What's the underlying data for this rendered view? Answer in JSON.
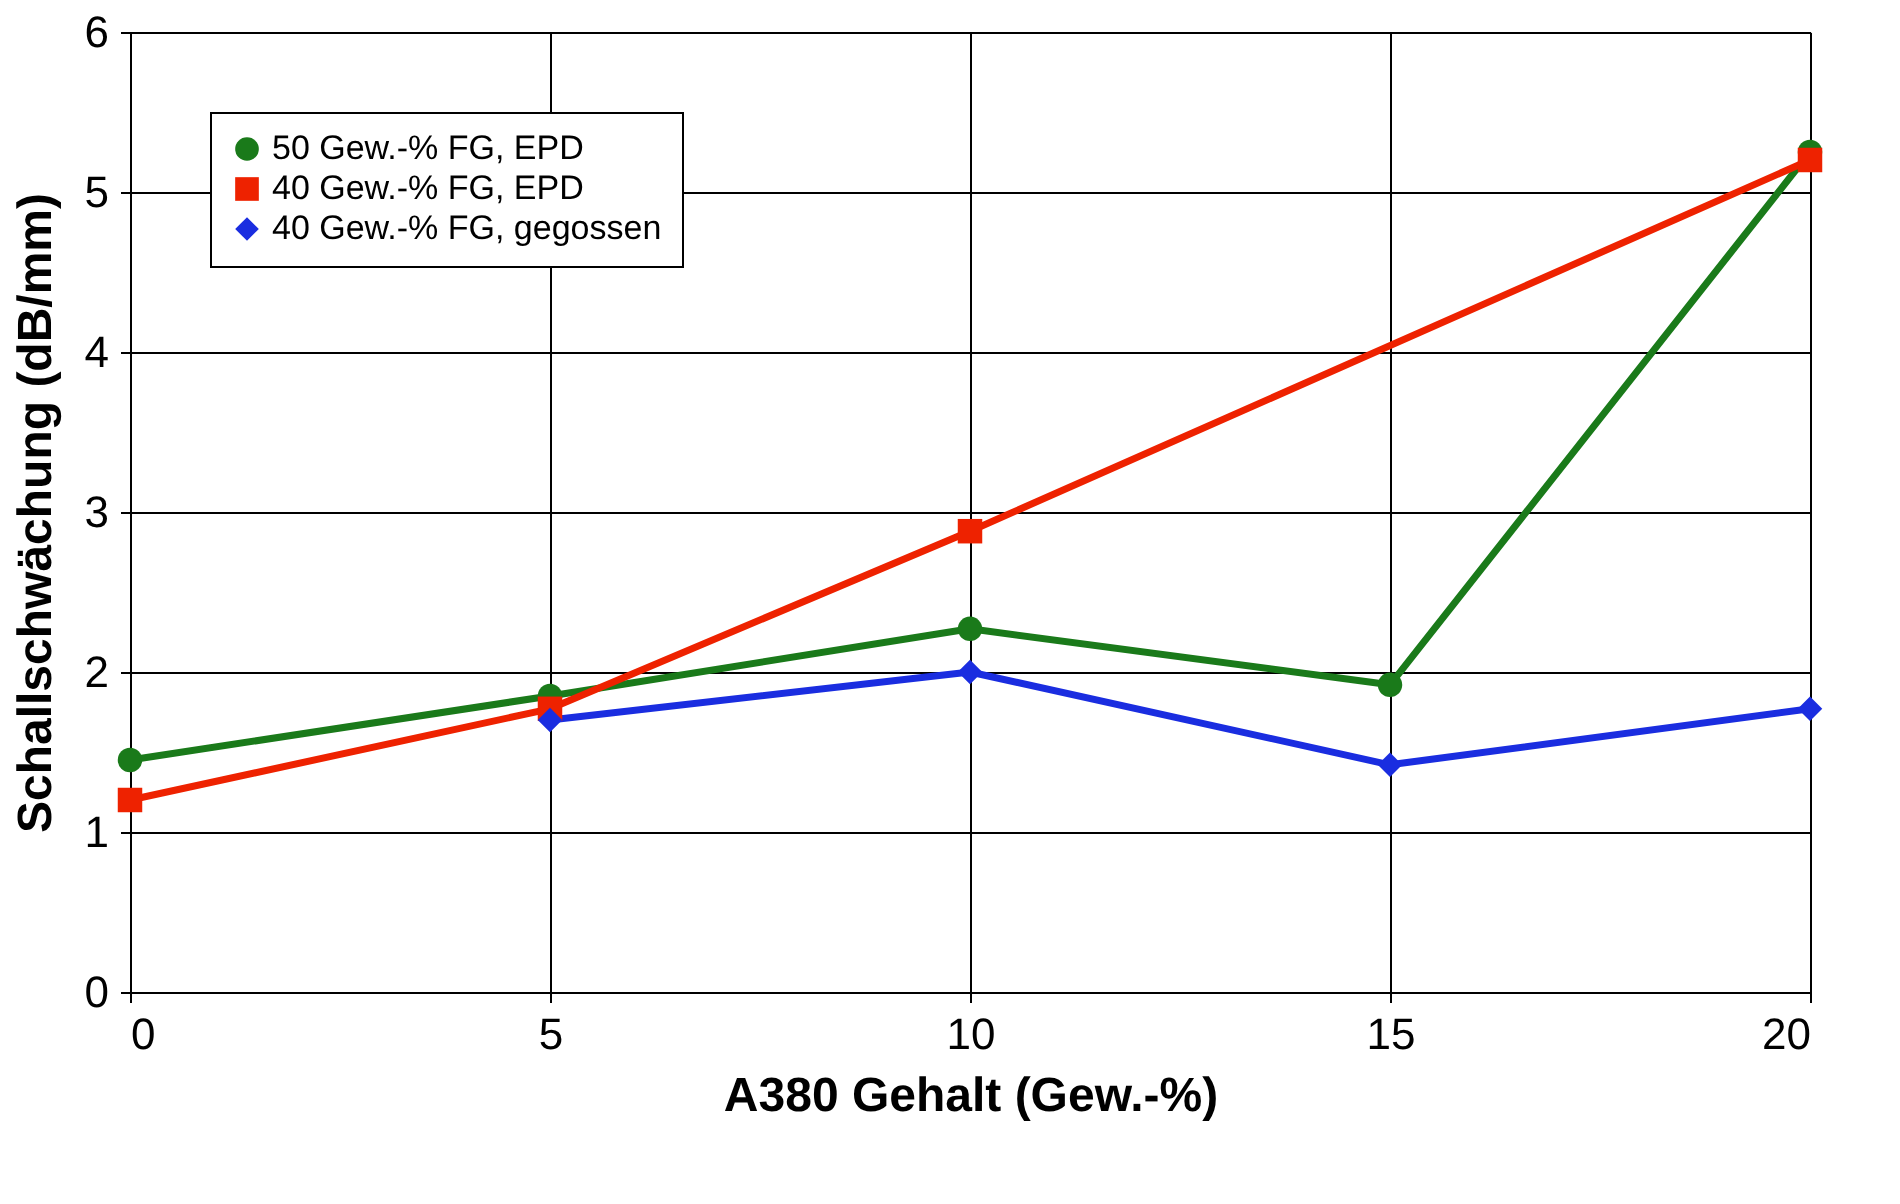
{
  "chart_data": {
    "type": "line",
    "xlabel": "A380 Gehalt (Gew.-%)",
    "ylabel": "Schallschwächung (dB/mm)",
    "xlim": [
      0,
      20
    ],
    "xticks": [
      0,
      5,
      10,
      15,
      20
    ],
    "ylim": [
      0,
      6
    ],
    "yticks": [
      0,
      1,
      2,
      3,
      4,
      5,
      6
    ],
    "grid": true,
    "legend": "top left",
    "series": [
      {
        "name": "50 Gew.-% FG, EPD",
        "color": "#1a7a1a",
        "marker": "circle",
        "x": [
          0,
          5,
          10,
          15,
          20
        ],
        "values": [
          1.45,
          1.85,
          2.27,
          1.92,
          5.25
        ]
      },
      {
        "name": "40 Gew.-% FG, EPD",
        "color": "#ee2200",
        "marker": "square",
        "x": [
          0,
          5,
          10,
          20
        ],
        "values": [
          1.2,
          1.77,
          2.88,
          5.2
        ]
      },
      {
        "name": "40 Gew.-% FG, gegossen",
        "color": "#1a2de0",
        "marker": "diamond",
        "x": [
          5,
          10,
          15,
          20
        ],
        "values": [
          1.7,
          2.0,
          1.42,
          1.77
        ]
      }
    ]
  }
}
